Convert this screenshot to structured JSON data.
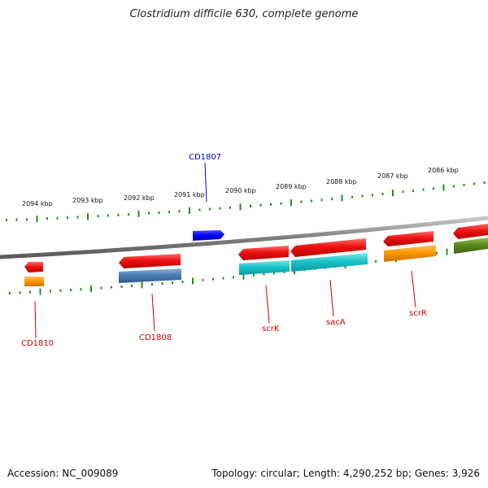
{
  "title": "Clostridium difficile 630, complete genome",
  "footer": {
    "accession": "Accession: NC_009089",
    "summary": "Topology: circular; Length: 4,290,252 bp; Genes: 3,926"
  },
  "colors": {
    "backbone": "#8a8a8a",
    "tick": "#1f8f1f",
    "label_red": "#cc0000",
    "label_blue": "#0000cc",
    "cds_red": "#ee1111",
    "cds_blue": "#0000ff",
    "rna_cyan": "#19c3c8",
    "rna_orange": "#ff9900",
    "rna_steel": "#4a7db5",
    "rna_olive": "#5a8a1f"
  },
  "scale_labels": [
    "2094 kbp",
    "2093 kbp",
    "2092 kbp",
    "2091 kbp",
    "2090 kbp",
    "2089 kbp",
    "2088 kbp",
    "2087 kbp",
    "2086 kbp"
  ],
  "genes": [
    {
      "name": "CD1810",
      "strand": "reverse",
      "lane": "cds",
      "color": "#ee1111",
      "label": "CD1810"
    },
    {
      "name": "CD1810-product",
      "strand": "reverse",
      "lane": "feature",
      "color": "#ff9900",
      "label": ""
    },
    {
      "name": "CD1808",
      "strand": "reverse",
      "lane": "cds",
      "color": "#ee1111",
      "label": "CD1808"
    },
    {
      "name": "CD1808-product",
      "strand": "reverse",
      "lane": "feature",
      "color": "#4a7db5",
      "label": ""
    },
    {
      "name": "CD1807",
      "strand": "forward",
      "lane": "cds",
      "color": "#0000ff",
      "label": "CD1807"
    },
    {
      "name": "scrK",
      "strand": "reverse",
      "lane": "cds",
      "color": "#ee1111",
      "label": "scrK"
    },
    {
      "name": "scrK-product",
      "strand": "reverse",
      "lane": "feature",
      "color": "#19c3c8",
      "label": ""
    },
    {
      "name": "sacA",
      "strand": "reverse",
      "lane": "cds",
      "color": "#ee1111",
      "label": "sacA"
    },
    {
      "name": "sacA-product",
      "strand": "reverse",
      "lane": "feature",
      "color": "#19c3c8",
      "label": ""
    },
    {
      "name": "scrR",
      "strand": "reverse",
      "lane": "cds",
      "color": "#ee1111",
      "label": "scrR"
    },
    {
      "name": "scrR-product",
      "strand": "reverse",
      "lane": "feature",
      "color": "#ff9900",
      "label": ""
    },
    {
      "name": "next-gene",
      "strand": "reverse",
      "lane": "cds",
      "color": "#ee1111",
      "label": ""
    },
    {
      "name": "next-gene-product",
      "strand": "reverse",
      "lane": "feature",
      "color": "#5a8a1f",
      "label": ""
    }
  ]
}
